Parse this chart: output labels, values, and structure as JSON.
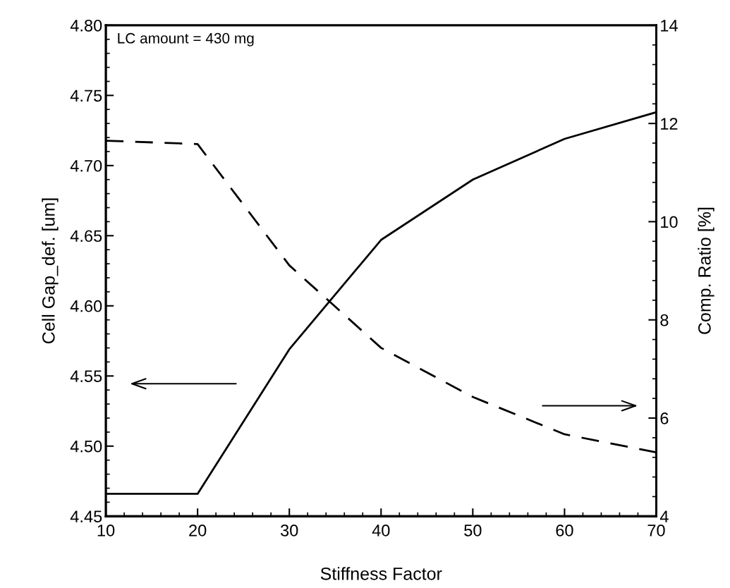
{
  "chart_data": {
    "type": "line",
    "xlabel": "Stiffness Factor",
    "ylabel": "Cell Gap_def. [um]",
    "y2label": "Comp. Ratio [%]",
    "x": [
      10,
      20,
      30,
      40,
      50,
      60,
      70
    ],
    "series": [
      {
        "color": "#000000",
        "line_style": "solid",
        "values": [
          4.466,
          4.466,
          4.569,
          4.647,
          4.69,
          4.719,
          4.738
        ]
      },
      {
        "color": "#000000",
        "line_style": "dashed",
        "axis": "y2",
        "values": [
          11.65,
          11.58,
          9.11,
          7.43,
          6.43,
          5.67,
          5.3
        ]
      }
    ],
    "xlim": [
      10,
      70
    ],
    "xticks": [
      10,
      20,
      30,
      40,
      50,
      60,
      70
    ],
    "ylim": [
      4.45,
      4.8
    ],
    "yticks": [
      {
        "value": 4.45,
        "label": "4.45"
      },
      {
        "value": 4.5,
        "label": "4.50"
      },
      {
        "value": 4.55,
        "label": "4.55"
      },
      {
        "value": 4.6,
        "label": "4.60"
      },
      {
        "value": 4.65,
        "label": "4.65"
      },
      {
        "value": 4.7,
        "label": "4.70"
      },
      {
        "value": 4.75,
        "label": "4.75"
      },
      {
        "value": 4.8,
        "label": "4.80"
      }
    ],
    "y2lim": [
      4,
      14
    ],
    "y2ticks": [
      4,
      6,
      8,
      10,
      12,
      14
    ],
    "annotations": [
      "LC amount = 430 mg"
    ],
    "grid": false,
    "marker": "none"
  }
}
